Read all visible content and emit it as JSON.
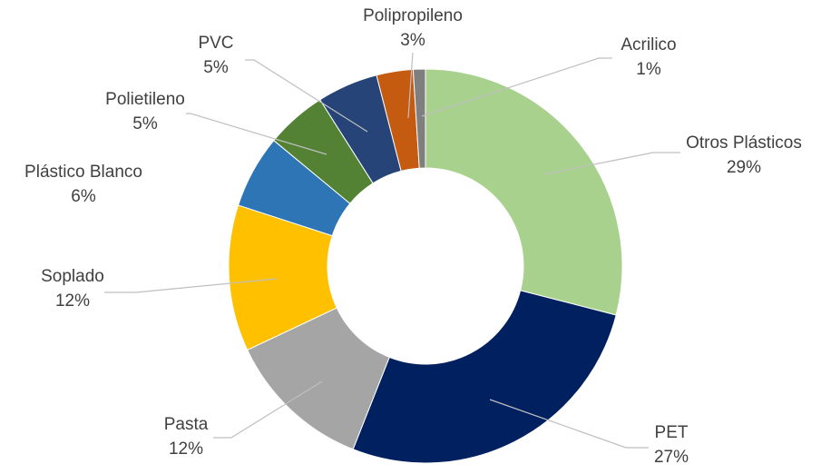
{
  "chart_data": {
    "type": "donut",
    "categories": [
      "Otros Plásticos",
      "PET",
      "Pasta",
      "Soplado",
      "Plástico Blanco",
      "Polietileno",
      "PVC",
      "Polipropileno",
      "Acrilico"
    ],
    "values": [
      29,
      27,
      12,
      12,
      6,
      5,
      5,
      3,
      1
    ],
    "value_labels": [
      "29%",
      "27%",
      "12%",
      "12%",
      "6%",
      "5%",
      "5%",
      "3%",
      "1%"
    ],
    "colors": [
      "#a9d18e",
      "#002060",
      "#a5a5a5",
      "#ffc000",
      "#2e75b6",
      "#548235",
      "#264478",
      "#c55a11",
      "#7f7f7f"
    ]
  }
}
